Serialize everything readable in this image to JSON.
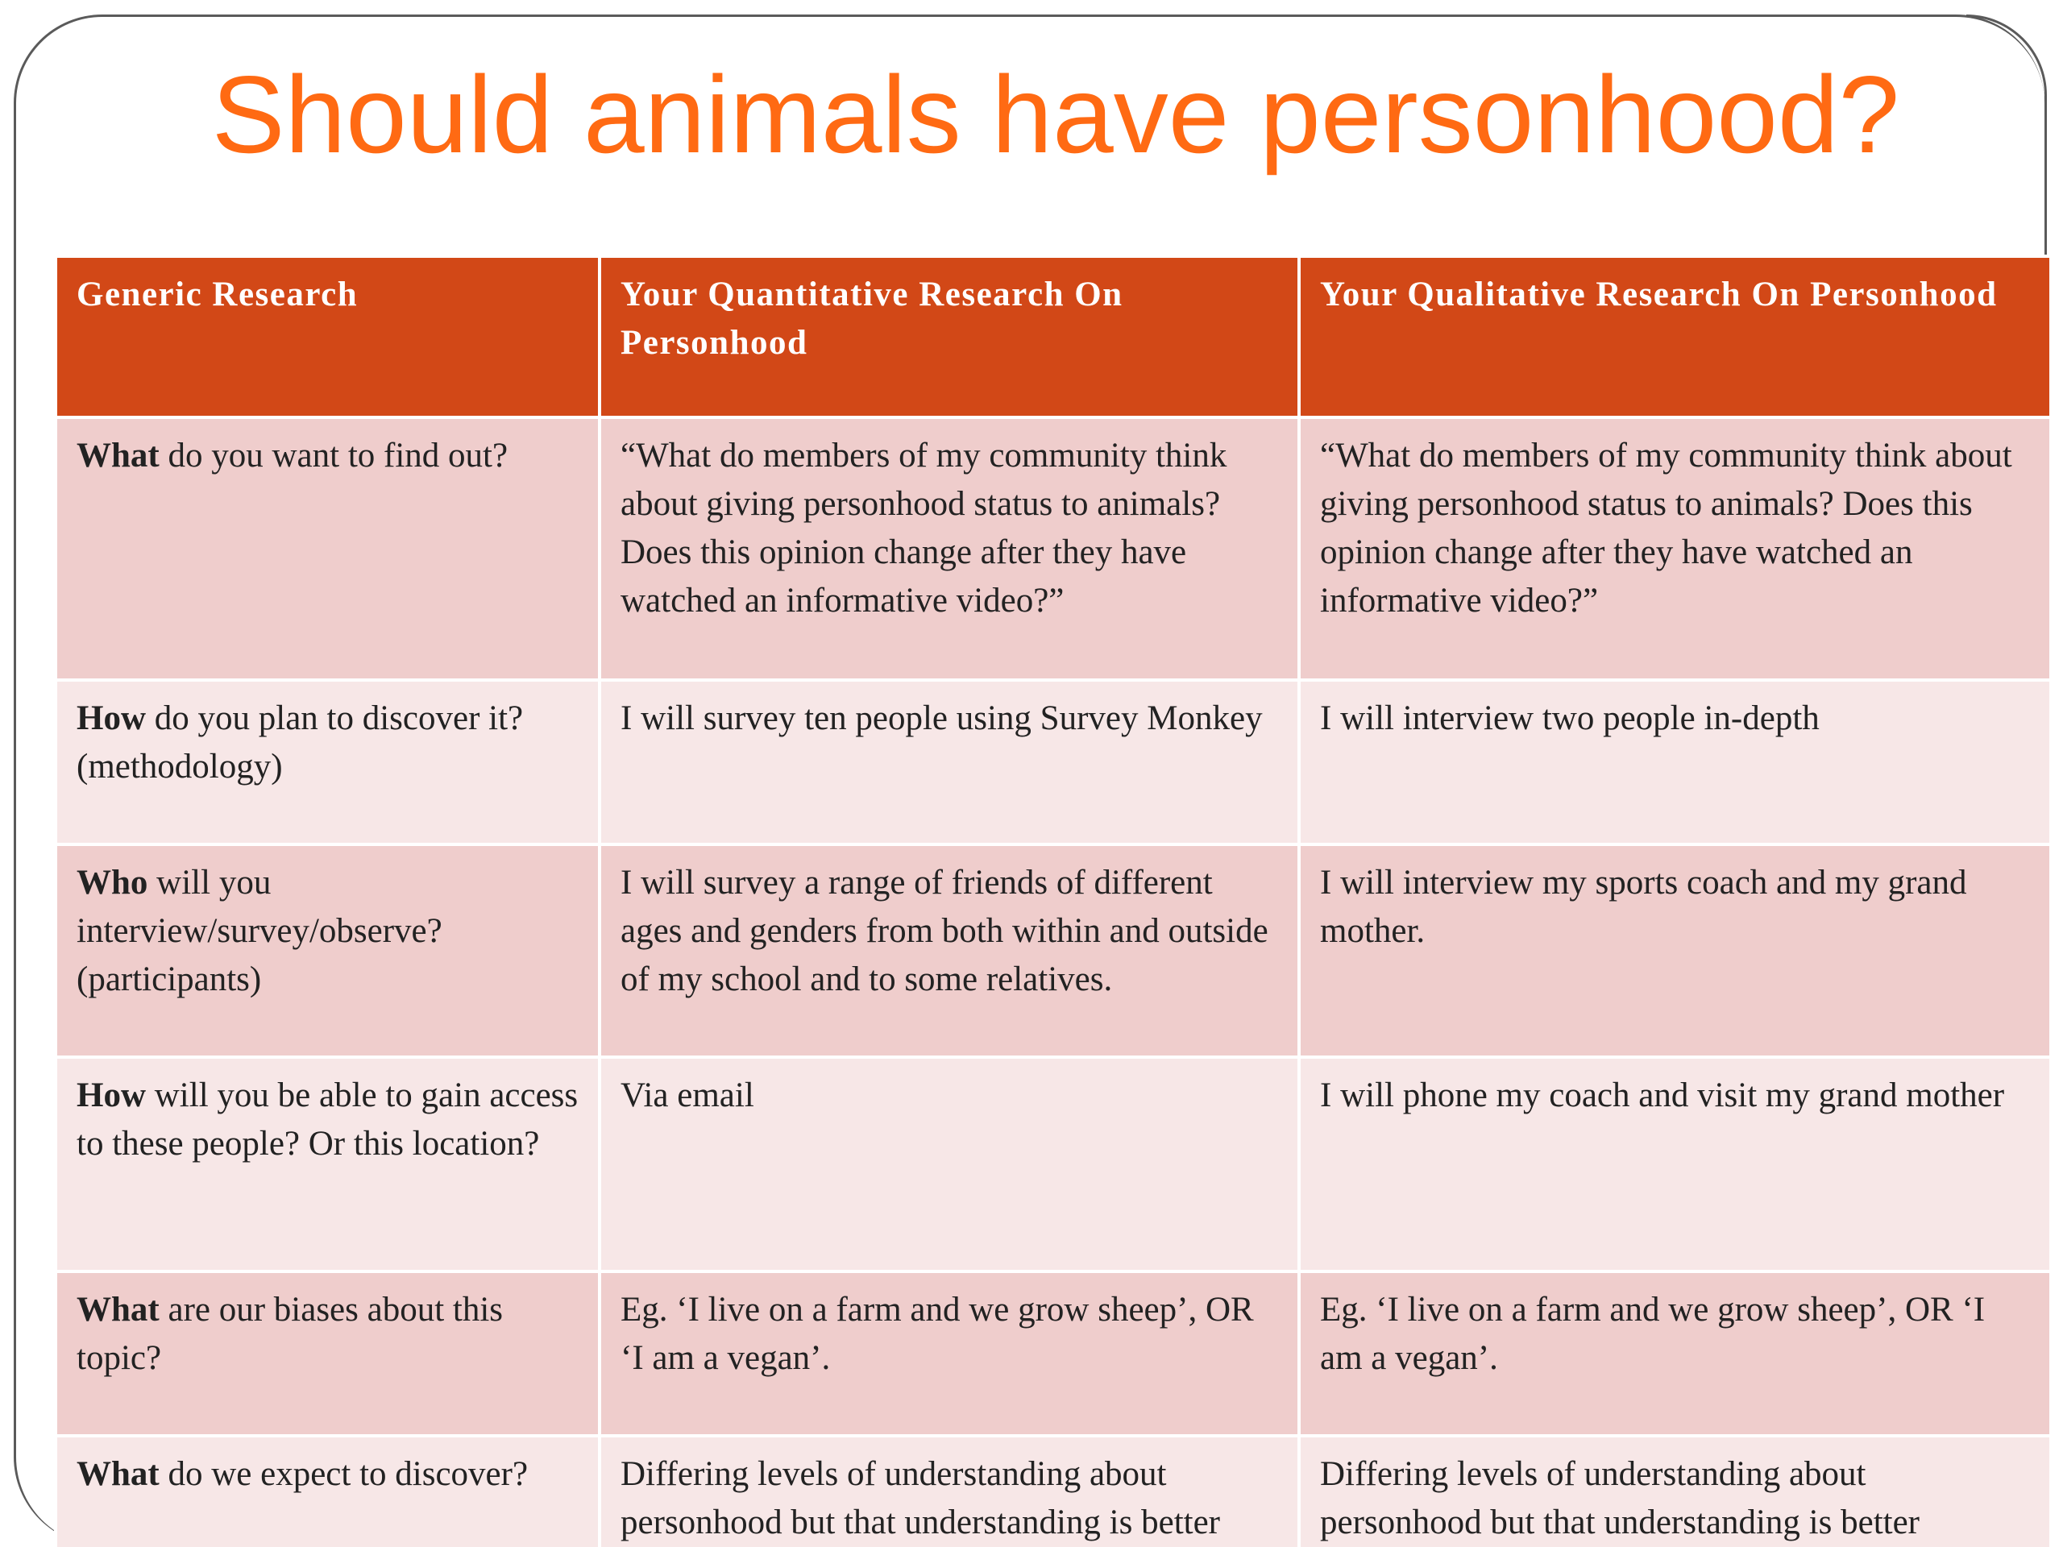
{
  "slide": {
    "title": "Should animals have personhood?"
  },
  "table": {
    "headers": [
      "Generic Research",
      "Your Quantitative Research On Personhood",
      "Your Qualitative Research On Personhood"
    ],
    "rows": [
      {
        "keyword": "What",
        "prompt": " do you want to find out?",
        "quantitative": "“What do members of my community think about giving personhood status to animals? Does this opinion change after they have watched an informative video?”",
        "qualitative": "“What do members of my community think about giving personhood status to animals? Does this opinion change after they have watched an informative video?”"
      },
      {
        "keyword": "How",
        "prompt": " do you plan to discover it? (methodology)",
        "quantitative": "I will survey ten people using Survey Monkey",
        "qualitative": "I will interview two people in-depth"
      },
      {
        "keyword": "Who",
        "prompt": " will you interview/survey/observe? (participants)",
        "quantitative": "I will survey a range of friends of different ages and genders from both within and outside of my school and to some relatives.",
        "qualitative": "I will interview my sports coach and my grand mother."
      },
      {
        "keyword": "How",
        "prompt": " will you be able to gain access to these people? Or this location?",
        "quantitative": "Via email",
        "qualitative": "I will phone my coach and visit my grand mother"
      },
      {
        "keyword": "What",
        "prompt": " are our biases about this topic?",
        "quantitative": "Eg. ‘I live on a farm and we grow sheep’, OR ‘I am a vegan’.",
        "qualitative": "Eg. ‘I live on a farm and we grow sheep’, OR ‘I am a vegan’."
      },
      {
        "keyword": "What",
        "prompt": " do we expect to discover?",
        "quantitative": "Differing levels of understanding about personhood but that understanding is better",
        "qualitative": "Differing levels of understanding about personhood but that understanding is better"
      }
    ]
  }
}
